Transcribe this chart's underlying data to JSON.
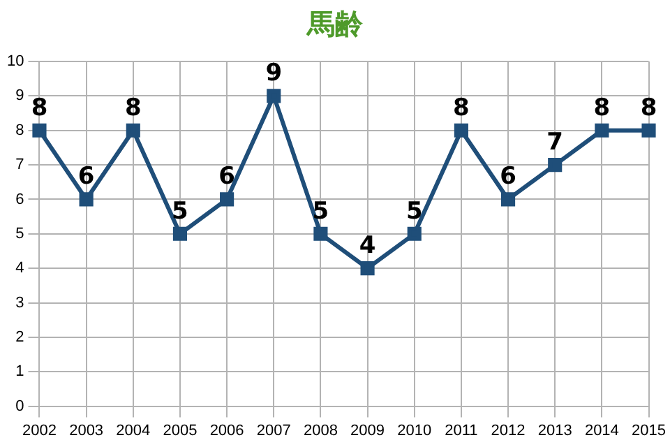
{
  "chart_data": {
    "type": "line",
    "title": "馬齢",
    "categories": [
      "2002",
      "2003",
      "2004",
      "2005",
      "2006",
      "2007",
      "2008",
      "2009",
      "2010",
      "2011",
      "2012",
      "2013",
      "2014",
      "2015"
    ],
    "series": [
      {
        "color": "#1f4e79",
        "values": [
          8,
          6,
          8,
          5,
          6,
          9,
          5,
          4,
          5,
          8,
          6,
          7,
          8,
          8
        ]
      }
    ],
    "ylim": [
      0,
      10
    ],
    "yticks": [
      0,
      1,
      2,
      3,
      4,
      5,
      6,
      7,
      8,
      9,
      10
    ],
    "grid": true,
    "marker": "square",
    "line_style": "solid",
    "data_labels": true,
    "legend": false
  }
}
